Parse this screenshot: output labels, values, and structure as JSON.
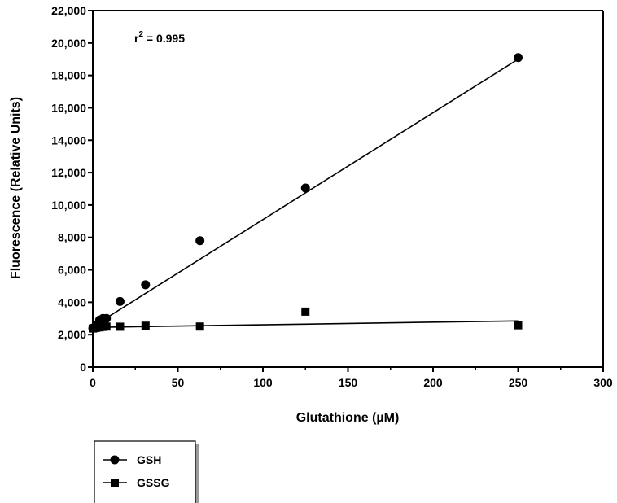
{
  "chart_data": {
    "type": "scatter",
    "title": "",
    "xlabel": "Glutathione (µM)",
    "ylabel": "Fluorescence (Relative Units)",
    "xlim": [
      0,
      300
    ],
    "ylim": [
      0,
      22000
    ],
    "x_ticks": [
      0,
      50,
      100,
      150,
      200,
      250,
      300
    ],
    "y_ticks": [
      0,
      2000,
      4000,
      6000,
      8000,
      10000,
      12000,
      14000,
      16000,
      18000,
      20000,
      22000
    ],
    "y_tick_labels": [
      "0",
      "2,000",
      "4,000",
      "6,000",
      "8,000",
      "10,000",
      "12,000",
      "14,000",
      "16,000",
      "18,000",
      "20,000",
      "22,000"
    ],
    "x_tick_labels": [
      "0",
      "50",
      "100",
      "150",
      "200",
      "250",
      "300"
    ],
    "annotation": {
      "prefix": "r",
      "superscript": "2",
      "suffix": " = 0.995"
    },
    "grid": false,
    "legend_position": "bottom-left",
    "series": [
      {
        "name": "GSH",
        "marker": "circle",
        "color": "#000000",
        "x": [
          0,
          1,
          2,
          4,
          6,
          8,
          16,
          31,
          63,
          125,
          250
        ],
        "y": [
          2400,
          2450,
          2550,
          2900,
          3000,
          3000,
          4050,
          5080,
          7800,
          11050,
          19100
        ],
        "fit": {
          "x": [
            0,
            250
          ],
          "y": [
            2500,
            19000
          ]
        }
      },
      {
        "name": "GSSG",
        "marker": "square",
        "color": "#000000",
        "x": [
          0,
          1,
          2,
          4,
          6,
          8,
          16,
          31,
          63,
          125,
          250
        ],
        "y": [
          2380,
          2400,
          2420,
          2450,
          2480,
          2500,
          2490,
          2550,
          2500,
          3420,
          2580
        ],
        "fit": {
          "x": [
            0,
            250
          ],
          "y": [
            2450,
            2850
          ]
        }
      }
    ]
  }
}
